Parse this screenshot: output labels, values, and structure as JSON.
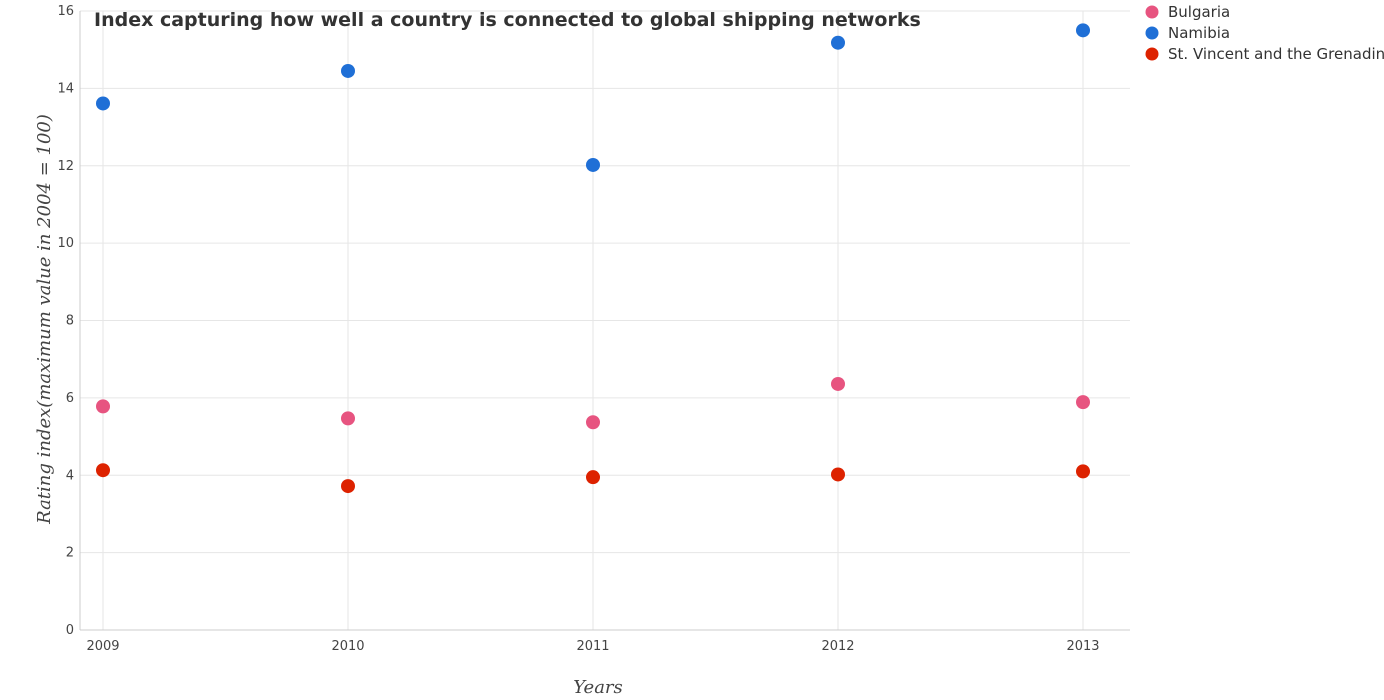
{
  "chart_data": {
    "type": "scatter",
    "title": "Index capturing how well a country is connected to global shipping networks",
    "xlabel": "Years",
    "ylabel": "Rating index(maximum value in 2004 = 100)",
    "categories": [
      "2009",
      "2010",
      "2011",
      "2012",
      "2013"
    ],
    "ylim": [
      0,
      16
    ],
    "yticks": [
      0,
      2,
      4,
      6,
      8,
      10,
      12,
      14,
      16
    ],
    "grid": true,
    "legend_position": "top-right",
    "series": [
      {
        "name": "Bulgaria",
        "color": "#e75480",
        "values": [
          5.78,
          5.47,
          5.37,
          6.36,
          5.89
        ]
      },
      {
        "name": "Namibia",
        "color": "#1f6fd6",
        "values": [
          13.61,
          14.45,
          12.02,
          15.18,
          15.5
        ]
      },
      {
        "name": "St. Vincent and the Grenadines",
        "color": "#dd2200",
        "values": [
          4.13,
          3.72,
          3.95,
          4.02,
          4.1
        ]
      }
    ]
  }
}
